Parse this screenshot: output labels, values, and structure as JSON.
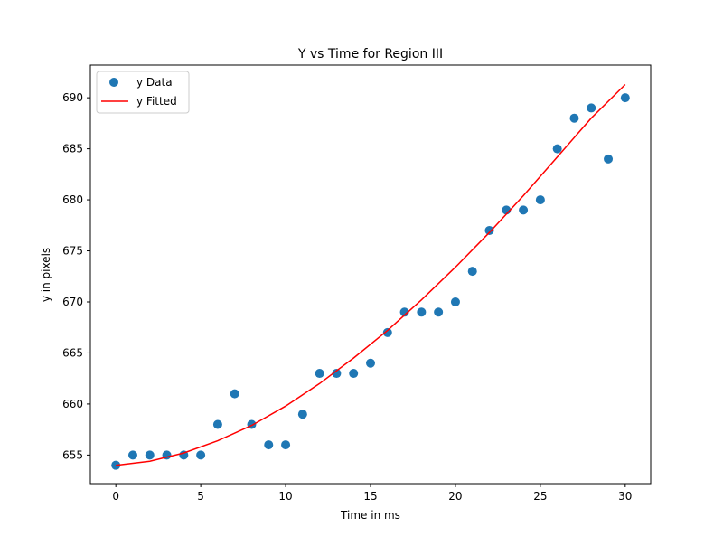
{
  "chart_data": {
    "type": "scatter",
    "title": "Y vs Time for Region III",
    "xlabel": "Time in ms",
    "ylabel": "y in pixels",
    "xlim": [
      -1.5,
      31.5
    ],
    "ylim": [
      652.2,
      693.2
    ],
    "xticks": [
      0,
      5,
      10,
      15,
      20,
      25,
      30
    ],
    "yticks": [
      655,
      660,
      665,
      670,
      675,
      680,
      685,
      690
    ],
    "grid": false,
    "legend_position": "top-left",
    "series": [
      {
        "name": "y Data",
        "kind": "scatter",
        "color": "#1f77b4",
        "x": [
          0,
          1,
          2,
          3,
          4,
          5,
          6,
          7,
          8,
          9,
          10,
          11,
          12,
          13,
          14,
          15,
          16,
          17,
          18,
          19,
          20,
          21,
          22,
          23,
          24,
          25,
          26,
          27,
          28,
          29,
          30
        ],
        "y": [
          654,
          655,
          655,
          655,
          655,
          655,
          658,
          661,
          658,
          656,
          656,
          659,
          663,
          663,
          663,
          664,
          667,
          669,
          669,
          669,
          670,
          673,
          677,
          679,
          679,
          680,
          685,
          688,
          689,
          684,
          690
        ]
      },
      {
        "name": "y Fitted",
        "kind": "line",
        "color": "#ff0000",
        "x": [
          0,
          2,
          4,
          6,
          8,
          10,
          12,
          14,
          16,
          18,
          20,
          22,
          24,
          26,
          28,
          30
        ],
        "y": [
          654.0,
          654.4,
          655.2,
          656.4,
          657.9,
          659.8,
          662.0,
          664.5,
          667.2,
          670.2,
          673.4,
          676.8,
          680.4,
          684.2,
          688.0,
          691.3
        ]
      }
    ]
  }
}
